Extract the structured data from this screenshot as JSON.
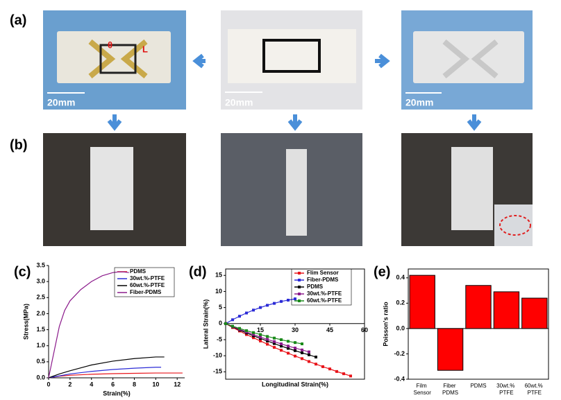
{
  "figure": {
    "panel_labels": [
      "(a)",
      "(b)",
      "(c)",
      "(d)",
      "(e)"
    ],
    "scale_bars": [
      "20mm",
      "20mm",
      "20mm"
    ],
    "angle_label": "θ",
    "length_label": "L"
  },
  "chart_data": [
    {
      "type": "line",
      "xlabel": "Strain(%)",
      "ylabel": "Stress(MPa)",
      "xlim": [
        0,
        12.7
      ],
      "xticks": [
        0,
        2,
        4,
        6,
        8,
        10,
        12
      ],
      "ylim": [
        0,
        3.5
      ],
      "yticks": [
        {
          "value": 0,
          "label": "0.0"
        },
        0.5,
        {
          "value": 1,
          "label": "1.0"
        },
        1.5,
        {
          "value": 2,
          "label": "2.0"
        },
        2.5,
        {
          "value": 3,
          "label": "3.0"
        },
        3.5
      ],
      "legend": "top-right",
      "series": [
        {
          "name": "PDMS",
          "color": "#e8141a",
          "x": [
            0,
            1,
            2,
            4,
            6,
            8,
            10,
            12.5
          ],
          "values": [
            0,
            0.05,
            0.08,
            0.11,
            0.13,
            0.14,
            0.15,
            0.15
          ]
        },
        {
          "name": "30wt.%-PTFE",
          "color": "#2b2bd6",
          "x": [
            0,
            1,
            2,
            4,
            6,
            8,
            10,
            10.5
          ],
          "values": [
            0,
            0.06,
            0.12,
            0.2,
            0.26,
            0.3,
            0.33,
            0.33
          ]
        },
        {
          "name": "60wt.%-PTFE",
          "color": "#000000",
          "x": [
            0,
            1,
            2,
            4,
            6,
            8,
            10,
            10.8
          ],
          "values": [
            0,
            0.12,
            0.22,
            0.4,
            0.52,
            0.6,
            0.65,
            0.65
          ]
        },
        {
          "name": "Fiber-PDMS",
          "color": "#8b1a8b",
          "x": [
            0,
            0.5,
            1,
            1.5,
            2,
            3,
            4,
            5,
            6,
            6.5,
            7,
            7.5
          ],
          "values": [
            0,
            0.8,
            1.6,
            2.1,
            2.4,
            2.75,
            3.0,
            3.18,
            3.28,
            3.3,
            3.3,
            3.28
          ]
        }
      ]
    },
    {
      "type": "line",
      "markers": true,
      "xlabel": "Longitudinal Strain(%)",
      "ylabel": "Lateral Strain(%)",
      "xlim": [
        0,
        60
      ],
      "xticks": [
        15,
        30,
        45,
        60
      ],
      "ylim": [
        -17.3,
        17
      ],
      "yticks": [
        15,
        10,
        5,
        0,
        -5,
        -10,
        -15
      ],
      "legend": "top-right",
      "series": [
        {
          "name": "Flim Sensor",
          "color": "#e8141a",
          "x": [
            0,
            3,
            6,
            9,
            12,
            15,
            18,
            21,
            24,
            27,
            30,
            33,
            36,
            39,
            42,
            45,
            48,
            51,
            54
          ],
          "values": [
            0,
            -1.2,
            -2.3,
            -3.4,
            -4.4,
            -5.4,
            -6.4,
            -7.4,
            -8.3,
            -9.2,
            -10.1,
            -10.9,
            -11.8,
            -12.6,
            -13.4,
            -14.1,
            -14.9,
            -15.6,
            -16.3
          ]
        },
        {
          "name": "Fiber-PDMS",
          "color": "#2b2bd6",
          "x": [
            0,
            3,
            6,
            9,
            12,
            15,
            18,
            21,
            24,
            27,
            30
          ],
          "values": [
            0,
            1.2,
            2.3,
            3.3,
            4.2,
            5.0,
            5.7,
            6.3,
            6.9,
            7.3,
            7.7
          ]
        },
        {
          "name": "PDMS",
          "color": "#000000",
          "x": [
            0,
            3,
            6,
            9,
            12,
            15,
            18,
            21,
            24,
            27,
            30,
            33,
            36,
            39
          ],
          "values": [
            0,
            -1.0,
            -2.0,
            -2.9,
            -3.8,
            -4.6,
            -5.4,
            -6.2,
            -7.0,
            -7.7,
            -8.4,
            -9.1,
            -9.7,
            -10.4
          ]
        },
        {
          "name": "30wt.%-PTFE",
          "color": "#8b1a8b",
          "x": [
            0,
            3,
            6,
            9,
            12,
            15,
            18,
            21,
            24,
            27,
            30,
            33,
            36
          ],
          "values": [
            0,
            -0.9,
            -1.8,
            -2.6,
            -3.4,
            -4.2,
            -4.9,
            -5.6,
            -6.3,
            -7.0,
            -7.6,
            -8.2,
            -8.8
          ]
        },
        {
          "name": "60wt.%-PTFE",
          "color": "#1a8a1a",
          "x": [
            0,
            3,
            6,
            9,
            12,
            15,
            18,
            21,
            24,
            27,
            30,
            33
          ],
          "values": [
            0,
            -0.8,
            -1.5,
            -2.2,
            -2.8,
            -3.4,
            -4.0,
            -4.5,
            -5.0,
            -5.5,
            -5.9,
            -6.3
          ]
        }
      ]
    },
    {
      "type": "bar",
      "ylabel": "Poisson's ratio",
      "color": "#ff0000",
      "categories": [
        "Film Sensor",
        "Fiber PDMS",
        "PDMS",
        "30wt.% PTFE",
        "60wt.% PTFE"
      ],
      "values": [
        0.42,
        -0.33,
        0.34,
        0.29,
        0.24
      ],
      "ylim": [
        -0.4,
        0.47
      ],
      "yticks": [
        0.4,
        0.2,
        {
          "value": 0,
          "label": "0.0"
        },
        -0.2,
        -0.4
      ]
    }
  ]
}
